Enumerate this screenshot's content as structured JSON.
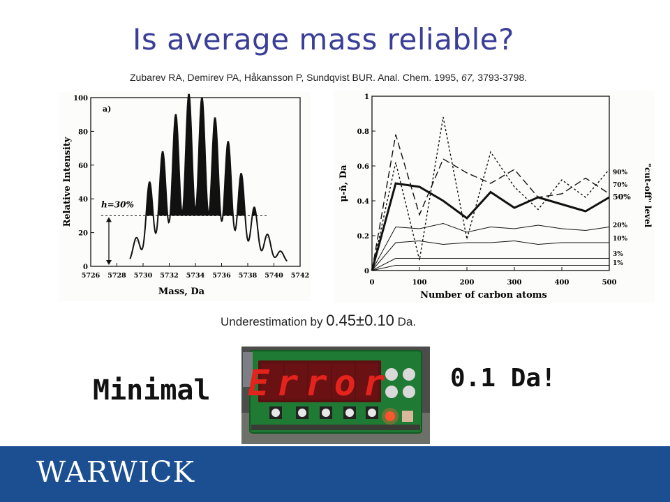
{
  "slide": {
    "title": "Is average mass reliable?",
    "citation": {
      "authors": "Zubarev RA, Demirev PA, Håkansson P, Sundqvist BUR.",
      "journal": "Anal. Chem. 1995,",
      "volume": "67,",
      "pages": "3793-3798."
    },
    "result": {
      "prefix": "Underestimation by",
      "value": "0.45±0.10",
      "unit": "Da."
    },
    "minimal": "Minimal",
    "tolerance": "0.1 Da!",
    "logo": "WARWICK",
    "photo_text": "Error",
    "colors": {
      "title": "#3a3e97",
      "footer": "#1b4f92",
      "led_red": "#e4231c"
    }
  },
  "chart_data": [
    {
      "type": "bar",
      "panel_label": "a)",
      "xlabel": "Mass, Da",
      "ylabel": "Relative Intensity",
      "xlim": [
        5726,
        5742
      ],
      "ylim": [
        0,
        100
      ],
      "x_ticks": [
        "5726",
        "5728",
        "5730",
        "5732",
        "5734",
        "5736",
        "5738",
        "5740",
        "5742"
      ],
      "y_ticks": [
        "0",
        "20",
        "40",
        "60",
        "80",
        "100"
      ],
      "threshold_label": "h=30%",
      "threshold": 30,
      "x": [
        5729.5,
        5730.5,
        5731.5,
        5732.5,
        5733.5,
        5734.5,
        5735.5,
        5736.5,
        5737.5,
        5738.5,
        5739.5,
        5740.5
      ],
      "values": [
        15,
        48,
        66,
        88,
        100,
        98,
        86,
        72,
        53,
        33,
        17,
        7
      ]
    },
    {
      "type": "line",
      "xlabel": "Number of carbon atoms",
      "ylabel": "μ-n̄, Da",
      "right_label": "\"cut-off\" level",
      "xlim": [
        0,
        500
      ],
      "ylim": [
        0,
        1
      ],
      "x_ticks": [
        "0",
        "100",
        "200",
        "300",
        "400",
        "500"
      ],
      "y_ticks": [
        "0",
        "0.2",
        "0.4",
        "0.6",
        "0.8",
        "1"
      ],
      "x": [
        0,
        50,
        100,
        150,
        200,
        250,
        300,
        350,
        400,
        450,
        500
      ],
      "series": [
        {
          "name": "90%",
          "values": [
            0,
            0.62,
            0.06,
            0.88,
            0.18,
            0.68,
            0.48,
            0.35,
            0.52,
            0.42,
            0.58
          ]
        },
        {
          "name": "70%",
          "values": [
            0,
            0.78,
            0.32,
            0.64,
            0.56,
            0.5,
            0.58,
            0.42,
            0.44,
            0.53,
            0.44
          ]
        },
        {
          "name": "50%",
          "values": [
            0,
            0.5,
            0.48,
            0.4,
            0.3,
            0.45,
            0.36,
            0.42,
            0.38,
            0.34,
            0.42
          ]
        },
        {
          "name": "20%",
          "values": [
            0,
            0.25,
            0.24,
            0.27,
            0.22,
            0.25,
            0.24,
            0.26,
            0.24,
            0.23,
            0.25
          ]
        },
        {
          "name": "10%",
          "values": [
            0,
            0.16,
            0.17,
            0.15,
            0.16,
            0.16,
            0.17,
            0.15,
            0.16,
            0.16,
            0.16
          ]
        },
        {
          "name": "3%",
          "values": [
            0,
            0.07,
            0.07,
            0.07,
            0.07,
            0.07,
            0.07,
            0.07,
            0.07,
            0.07,
            0.07
          ]
        },
        {
          "name": "1%",
          "values": [
            0,
            0.03,
            0.03,
            0.03,
            0.03,
            0.03,
            0.03,
            0.03,
            0.03,
            0.03,
            0.03
          ]
        }
      ]
    }
  ]
}
